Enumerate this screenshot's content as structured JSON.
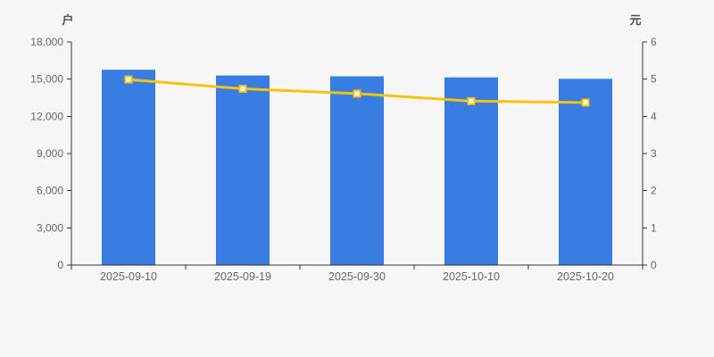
{
  "chart": {
    "background": "#f7f7f7",
    "bar_color": "#377de2",
    "line_color": "#f8c20c",
    "marker_fill": "#ffffff",
    "axis_color": "#333333",
    "tick_label_color": "#666666",
    "unit_label_color": "#4d4d4d"
  },
  "chart_data": {
    "type": "bar",
    "subtype": "bar-line-combo",
    "categories": [
      "2025-09-10",
      "2025-09-19",
      "2025-09-30",
      "2025-10-10",
      "2025-10-20"
    ],
    "series": [
      {
        "name": "holders-count-bar",
        "type": "bar",
        "axis": "left",
        "values": [
          15760,
          15290,
          15230,
          15140,
          15030
        ]
      },
      {
        "name": "price-line",
        "type": "line",
        "axis": "right",
        "values": [
          4.99,
          4.74,
          4.61,
          4.41,
          4.37
        ]
      }
    ],
    "left_axis": {
      "label": "户",
      "min": 0,
      "max": 18000,
      "tick_interval": 3000,
      "tick_labels": [
        "0",
        "3,000",
        "6,000",
        "9,000",
        "12,000",
        "15,000",
        "18,000"
      ]
    },
    "right_axis": {
      "label": "元",
      "min": 0,
      "max": 6,
      "tick_interval": 1,
      "tick_labels": [
        "0",
        "1",
        "2",
        "3",
        "4",
        "5",
        "6"
      ]
    },
    "grid": false,
    "legend": false,
    "title": ""
  }
}
